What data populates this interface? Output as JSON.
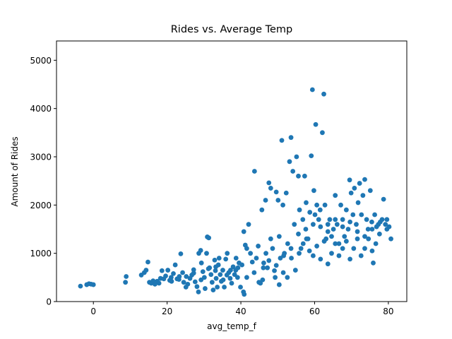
{
  "chart_data": {
    "type": "scatter",
    "title": "Rides vs. Average Temp",
    "xlabel": "avg_temp_f",
    "ylabel": "Amount of Rides",
    "xlim": [
      -10,
      85
    ],
    "ylim": [
      0,
      5400
    ],
    "x_ticks": [
      0,
      20,
      40,
      60,
      80
    ],
    "y_ticks": [
      0,
      1000,
      2000,
      3000,
      4000,
      5000
    ],
    "grid": false,
    "legend": "none",
    "marker_color": "#1f77b4",
    "series": [
      {
        "points": [
          [
            -3.5,
            320
          ],
          [
            -1.8,
            350
          ],
          [
            -1.2,
            370
          ],
          [
            -0.6,
            360
          ],
          [
            0,
            350
          ],
          [
            8.7,
            400
          ],
          [
            8.9,
            520
          ],
          [
            13,
            550
          ],
          [
            13.8,
            600
          ],
          [
            14.3,
            650
          ],
          [
            14.8,
            820
          ],
          [
            15.2,
            400
          ],
          [
            15.7,
            380
          ],
          [
            16.2,
            430
          ],
          [
            16.7,
            360
          ],
          [
            17.3,
            420
          ],
          [
            17.8,
            380
          ],
          [
            18.2,
            480
          ],
          [
            18.6,
            640
          ],
          [
            19.1,
            470
          ],
          [
            19.6,
            530
          ],
          [
            20.2,
            650
          ],
          [
            20.7,
            440
          ],
          [
            21.1,
            500
          ],
          [
            21.7,
            580
          ],
          [
            22.2,
            760
          ],
          [
            22.7,
            470
          ],
          [
            23.3,
            520
          ],
          [
            23.7,
            990
          ],
          [
            24.2,
            600
          ],
          [
            24.5,
            400
          ],
          [
            25.1,
            300
          ],
          [
            25.6,
            360
          ],
          [
            26.2,
            480
          ],
          [
            26.7,
            550
          ],
          [
            27.2,
            660
          ],
          [
            27.6,
            410
          ],
          [
            28.1,
            310
          ],
          [
            28.5,
            200
          ],
          [
            28.6,
            1000
          ],
          [
            29.1,
            1060
          ],
          [
            29.3,
            800
          ],
          [
            29.7,
            620
          ],
          [
            30.1,
            500
          ],
          [
            30.3,
            270
          ],
          [
            30.7,
            1000
          ],
          [
            30.9,
            1340
          ],
          [
            31.3,
            1320
          ],
          [
            31.5,
            700
          ],
          [
            31.9,
            560
          ],
          [
            32.2,
            400
          ],
          [
            32.5,
            240
          ],
          [
            32.9,
            860
          ],
          [
            33.1,
            640
          ],
          [
            33.3,
            480
          ],
          [
            33.6,
            300
          ],
          [
            33.9,
            760
          ],
          [
            34.1,
            900
          ],
          [
            34.4,
            560
          ],
          [
            34.7,
            420
          ],
          [
            35.1,
            650
          ],
          [
            35.5,
            300
          ],
          [
            35.9,
            880
          ],
          [
            36.3,
            1000
          ],
          [
            36.7,
            600
          ],
          [
            37.1,
            480
          ],
          [
            37.5,
            380
          ],
          [
            37.9,
            720
          ],
          [
            38.3,
            560
          ],
          [
            38.7,
            900
          ],
          [
            39.1,
            500
          ],
          [
            39.5,
            800
          ],
          [
            39.9,
            300
          ],
          [
            40.3,
            760
          ],
          [
            40.7,
            200
          ],
          [
            40.9,
            150
          ],
          [
            40.8,
            1450
          ],
          [
            41.2,
            1170
          ],
          [
            41.6,
            1100
          ],
          [
            42.1,
            1600
          ],
          [
            42.6,
            1000
          ],
          [
            43.1,
            820
          ],
          [
            43.7,
            2700
          ],
          [
            44.2,
            900
          ],
          [
            44.7,
            1150
          ],
          [
            45.3,
            380
          ],
          [
            45.7,
            1900
          ],
          [
            46.2,
            800
          ],
          [
            46.7,
            2100
          ],
          [
            47.2,
            700
          ],
          [
            47.6,
            2460
          ],
          [
            48.1,
            2350
          ],
          [
            48.6,
            1100
          ],
          [
            49.1,
            640
          ],
          [
            49.6,
            2270
          ],
          [
            50.1,
            2100
          ],
          [
            50.4,
            1350
          ],
          [
            50.7,
            900
          ],
          [
            51.1,
            3340
          ],
          [
            51.4,
            2000
          ],
          [
            51.8,
            1000
          ],
          [
            52.3,
            2250
          ],
          [
            52.7,
            1200
          ],
          [
            53.2,
            2900
          ],
          [
            53.6,
            3400
          ],
          [
            54.1,
            2700
          ],
          [
            54.5,
            1600
          ],
          [
            55.1,
            3000
          ],
          [
            55.6,
            2600
          ],
          [
            55.9,
            1900
          ],
          [
            56.3,
            1100
          ],
          [
            56.8,
            1700
          ],
          [
            57.3,
            2600
          ],
          [
            57.7,
            2050
          ],
          [
            58.2,
            1300
          ],
          [
            58.7,
            1850
          ],
          [
            59.1,
            3020
          ],
          [
            59.4,
            4390
          ],
          [
            59.8,
            2300
          ],
          [
            60.1,
            1800
          ],
          [
            60.3,
            3670
          ],
          [
            60.6,
            2000
          ],
          [
            61.1,
            1700
          ],
          [
            61.5,
            1900
          ],
          [
            62.1,
            3500
          ],
          [
            62.5,
            4300
          ],
          [
            62.8,
            2000
          ],
          [
            63.1,
            1300
          ],
          [
            63.6,
            1600
          ],
          [
            64.1,
            1700
          ],
          [
            64.6,
            1350
          ],
          [
            65.1,
            1500
          ],
          [
            65.6,
            2200
          ],
          [
            66.1,
            1600
          ],
          [
            66.6,
            1200
          ],
          [
            67.1,
            2000
          ],
          [
            67.6,
            1700
          ],
          [
            68.1,
            1350
          ],
          [
            68.6,
            1900
          ],
          [
            69.1,
            1500
          ],
          [
            69.5,
            2520
          ],
          [
            69.9,
            2250
          ],
          [
            70.4,
            1800
          ],
          [
            70.8,
            2350
          ],
          [
            71.3,
            1600
          ],
          [
            71.8,
            2050
          ],
          [
            72.2,
            2450
          ],
          [
            72.7,
            1800
          ],
          [
            73.1,
            2200
          ],
          [
            73.6,
            2530
          ],
          [
            74.1,
            1700
          ],
          [
            74.5,
            1500
          ],
          [
            75.1,
            2300
          ],
          [
            75.5,
            1650
          ],
          [
            75.9,
            800
          ],
          [
            76.3,
            1800
          ],
          [
            76.8,
            1550
          ],
          [
            77.3,
            1600
          ],
          [
            77.8,
            1650
          ],
          [
            78.3,
            1700
          ],
          [
            78.7,
            2120
          ],
          [
            79.2,
            1600
          ],
          [
            79.6,
            1700
          ],
          [
            80.2,
            1550
          ],
          [
            80.7,
            1300
          ],
          [
            44.9,
            400
          ],
          [
            45.9,
            450
          ],
          [
            46.8,
            1000
          ],
          [
            48.1,
            1300
          ],
          [
            49.3,
            500
          ],
          [
            50.4,
            350
          ],
          [
            51.5,
            600
          ],
          [
            52.6,
            500
          ],
          [
            53.7,
            900
          ],
          [
            54.8,
            650
          ],
          [
            55.8,
            1000
          ],
          [
            56.9,
            1200
          ],
          [
            57.8,
            1300
          ],
          [
            58.6,
            1050
          ],
          [
            59.6,
            950
          ],
          [
            60.6,
            1150
          ],
          [
            61.6,
            880
          ],
          [
            62.6,
            1250
          ],
          [
            63.6,
            780
          ],
          [
            64.6,
            1000
          ],
          [
            65.6,
            1200
          ],
          [
            66.6,
            950
          ],
          [
            67.6,
            1100
          ],
          [
            68.6,
            1250
          ],
          [
            69.6,
            880
          ],
          [
            70.6,
            1100
          ],
          [
            71.6,
            1300
          ],
          [
            72.6,
            950
          ],
          [
            73.6,
            1100
          ],
          [
            74.6,
            1300
          ],
          [
            75.6,
            1050
          ],
          [
            76.6,
            1200
          ],
          [
            36.2,
            550
          ],
          [
            38.6,
            650
          ],
          [
            41.6,
            500
          ],
          [
            43.6,
            600
          ],
          [
            46.1,
            700
          ],
          [
            47.6,
            850
          ],
          [
            49.6,
            750
          ],
          [
            51.6,
            950
          ],
          [
            53.6,
            1100
          ],
          [
            55.6,
            1400
          ],
          [
            57.6,
            1500
          ],
          [
            59.6,
            1600
          ],
          [
            61.6,
            1550
          ],
          [
            63.6,
            1450
          ],
          [
            65.6,
            1700
          ],
          [
            67.6,
            1550
          ],
          [
            69.6,
            1650
          ],
          [
            71.6,
            1450
          ],
          [
            73.6,
            1350
          ],
          [
            75.6,
            1500
          ],
          [
            77.6,
            1400
          ],
          [
            79.6,
            1500
          ],
          [
            21.2,
            420
          ],
          [
            23.2,
            460
          ],
          [
            25.2,
            520
          ],
          [
            27.2,
            590
          ],
          [
            29.2,
            450
          ],
          [
            31.2,
            680
          ],
          [
            33.2,
            720
          ],
          [
            35.2,
            450
          ],
          [
            37.2,
            650
          ],
          [
            39.2,
            700
          ]
        ]
      }
    ]
  }
}
